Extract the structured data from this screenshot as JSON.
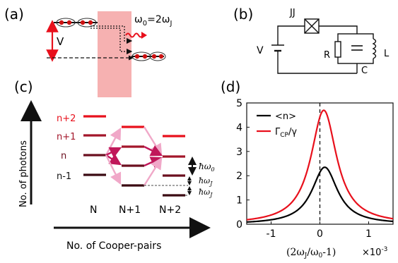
{
  "panels": {
    "a": {
      "label": "(a)",
      "voltage_label": "V",
      "frequency_label_main": "ω",
      "frequency_label_sub0": "0",
      "frequency_label_eq": "=2ω",
      "frequency_label_subJ": "J"
    },
    "b": {
      "label": "(b)",
      "junction_label": "JJ",
      "voltage_label": "V",
      "resistor_label": "R",
      "capacitor_label": "C",
      "inductor_label": "L"
    },
    "c": {
      "label": "(c)",
      "y_axis_label": "No. of photons",
      "x_axis_label": "No. of Cooper-pairs",
      "level_labels": [
        "n+2",
        "n+1",
        "n",
        "n-1"
      ],
      "column_labels": [
        "N",
        "N+1",
        "N+2"
      ],
      "energy_labels": [
        "ħω",
        "0",
        "ħω",
        "J",
        "ħω",
        "J"
      ],
      "colors": {
        "bright": "#e8101c",
        "mid": "#a3162a",
        "dark": "#6b0f1f",
        "darkest": "#3a0a12",
        "arrow_mid": "#c0185a",
        "arrow_light": "#f0a8c8"
      }
    },
    "d": {
      "label": "(d)",
      "xlabel_main": "(2ω",
      "xlabel_subJ": "J",
      "xlabel_mid": "/ω",
      "xlabel_sub0": "0",
      "xlabel_end": "-1)",
      "x_multiplier": "×10",
      "x_multiplier_exp": "-3"
    }
  },
  "chart_data": {
    "type": "line",
    "xlim": [
      -1.5,
      1.5
    ],
    "ylim": [
      0,
      5
    ],
    "xticks": [
      -1,
      0,
      1
    ],
    "yticks": [
      0,
      1,
      2,
      3,
      4,
      5
    ],
    "xtick_labels": [
      "-1",
      "0",
      "1"
    ],
    "ytick_labels": [
      "0",
      "1",
      "2",
      "3",
      "4",
      "5"
    ],
    "vline_x": 0,
    "legend": "top-left",
    "series": [
      {
        "name": "<n>",
        "color": "#000000",
        "peak_x": 0.1,
        "peak_y": 2.35,
        "hwhm": 0.32
      },
      {
        "name": "Γ_CP/γ",
        "name_main": "Γ",
        "name_sub": "CP",
        "name_tail": "/γ",
        "color": "#e8101c",
        "peak_x": 0.08,
        "peak_y": 4.7,
        "hwhm": 0.32
      }
    ]
  }
}
